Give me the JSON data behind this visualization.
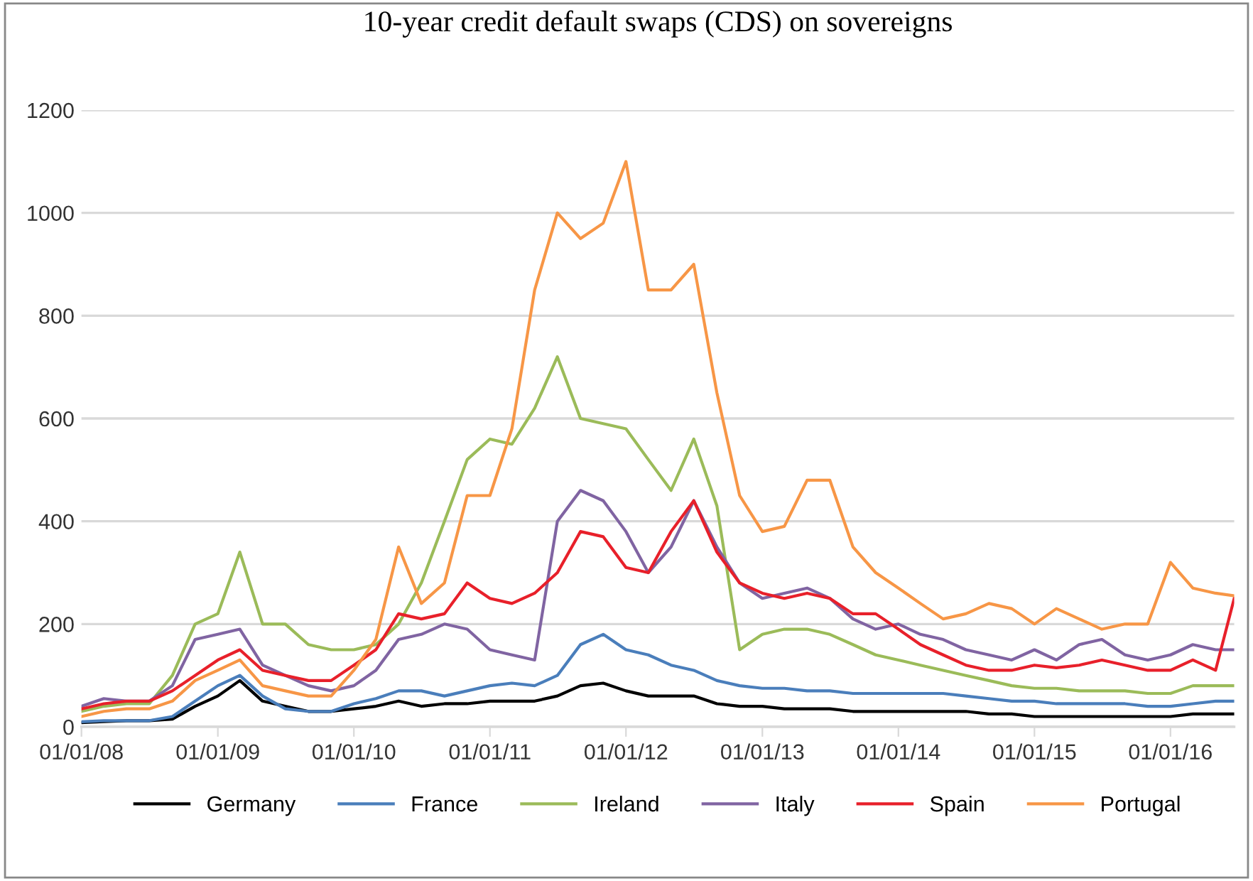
{
  "chart_data": {
    "type": "line",
    "title": "10-year credit default swaps (CDS) on sovereigns",
    "x": [
      "2008-01",
      "2008-03",
      "2008-05",
      "2008-07",
      "2008-09",
      "2008-11",
      "2009-01",
      "2009-03",
      "2009-05",
      "2009-07",
      "2009-09",
      "2009-11",
      "2010-01",
      "2010-03",
      "2010-05",
      "2010-07",
      "2010-09",
      "2010-11",
      "2011-01",
      "2011-03",
      "2011-05",
      "2011-07",
      "2011-09",
      "2011-11",
      "2012-01",
      "2012-03",
      "2012-05",
      "2012-07",
      "2012-09",
      "2012-11",
      "2013-01",
      "2013-03",
      "2013-05",
      "2013-07",
      "2013-09",
      "2013-11",
      "2014-01",
      "2014-03",
      "2014-05",
      "2014-07",
      "2014-09",
      "2014-11",
      "2015-01",
      "2015-03",
      "2015-05",
      "2015-07",
      "2015-09",
      "2015-11",
      "2016-01",
      "2016-03",
      "2016-05",
      "2016-06-20"
    ],
    "series": [
      {
        "name": "Germany",
        "color": "#000000",
        "values": [
          8,
          10,
          12,
          12,
          15,
          40,
          60,
          90,
          50,
          40,
          30,
          30,
          35,
          40,
          50,
          40,
          45,
          45,
          50,
          50,
          50,
          60,
          80,
          85,
          70,
          60,
          60,
          60,
          45,
          40,
          40,
          35,
          35,
          35,
          30,
          30,
          30,
          30,
          30,
          30,
          25,
          25,
          20,
          20,
          20,
          20,
          20,
          20,
          20,
          25,
          25,
          25
        ]
      },
      {
        "name": "France",
        "color": "#4a7ebb",
        "values": [
          10,
          12,
          12,
          12,
          20,
          50,
          80,
          100,
          60,
          35,
          30,
          30,
          45,
          55,
          70,
          70,
          60,
          70,
          80,
          85,
          80,
          100,
          160,
          180,
          150,
          140,
          120,
          110,
          90,
          80,
          75,
          75,
          70,
          70,
          65,
          65,
          65,
          65,
          65,
          60,
          55,
          50,
          50,
          45,
          45,
          45,
          45,
          40,
          40,
          45,
          50,
          50
        ]
      },
      {
        "name": "Ireland",
        "color": "#9bbb59",
        "values": [
          30,
          40,
          45,
          45,
          100,
          200,
          220,
          340,
          200,
          200,
          160,
          150,
          150,
          160,
          200,
          280,
          400,
          520,
          560,
          550,
          620,
          720,
          600,
          590,
          580,
          520,
          460,
          560,
          430,
          150,
          180,
          190,
          190,
          180,
          160,
          140,
          130,
          120,
          110,
          100,
          90,
          80,
          75,
          75,
          70,
          70,
          70,
          65,
          65,
          80,
          80,
          80
        ]
      },
      {
        "name": "Italy",
        "color": "#8064a2",
        "values": [
          40,
          55,
          50,
          50,
          80,
          170,
          180,
          190,
          120,
          100,
          80,
          70,
          80,
          110,
          170,
          180,
          200,
          190,
          150,
          140,
          130,
          400,
          460,
          440,
          380,
          300,
          350,
          440,
          350,
          280,
          250,
          260,
          270,
          250,
          210,
          190,
          200,
          180,
          170,
          150,
          140,
          130,
          150,
          130,
          160,
          170,
          140,
          130,
          140,
          160,
          150,
          150
        ]
      },
      {
        "name": "Spain",
        "color": "#e8202a",
        "values": [
          35,
          45,
          50,
          50,
          70,
          100,
          130,
          150,
          110,
          100,
          90,
          90,
          120,
          150,
          220,
          210,
          220,
          280,
          250,
          240,
          260,
          300,
          380,
          370,
          310,
          300,
          380,
          440,
          340,
          280,
          260,
          250,
          260,
          250,
          220,
          220,
          190,
          160,
          140,
          120,
          110,
          110,
          120,
          115,
          120,
          130,
          120,
          110,
          110,
          130,
          110,
          250
        ]
      },
      {
        "name": "Portugal",
        "color": "#f79646",
        "values": [
          20,
          30,
          35,
          35,
          50,
          90,
          110,
          130,
          80,
          70,
          60,
          60,
          110,
          170,
          350,
          240,
          280,
          450,
          450,
          580,
          850,
          1000,
          950,
          980,
          1100,
          850,
          850,
          900,
          650,
          450,
          380,
          390,
          480,
          480,
          350,
          300,
          270,
          240,
          210,
          220,
          240,
          230,
          200,
          230,
          210,
          190,
          200,
          200,
          320,
          270,
          260,
          255
        ]
      }
    ],
    "xlim": [
      "2008-01-01",
      "2016-06-20"
    ],
    "xticks": [
      {
        "value": "2008-01-01",
        "label": "01/01/08"
      },
      {
        "value": "2009-01-01",
        "label": "01/01/09"
      },
      {
        "value": "2010-01-01",
        "label": "01/01/10"
      },
      {
        "value": "2011-01-01",
        "label": "01/01/11"
      },
      {
        "value": "2012-01-01",
        "label": "01/01/12"
      },
      {
        "value": "2013-01-01",
        "label": "01/01/13"
      },
      {
        "value": "2014-01-01",
        "label": "01/01/14"
      },
      {
        "value": "2015-01-01",
        "label": "01/01/15"
      },
      {
        "value": "2016-01-01",
        "label": "01/01/16"
      }
    ],
    "ylim": [
      0,
      1200
    ],
    "yticks": [
      0,
      200,
      400,
      600,
      800,
      1000,
      1200
    ],
    "grid": "y",
    "legend": "bottom",
    "line_style": "solid"
  }
}
